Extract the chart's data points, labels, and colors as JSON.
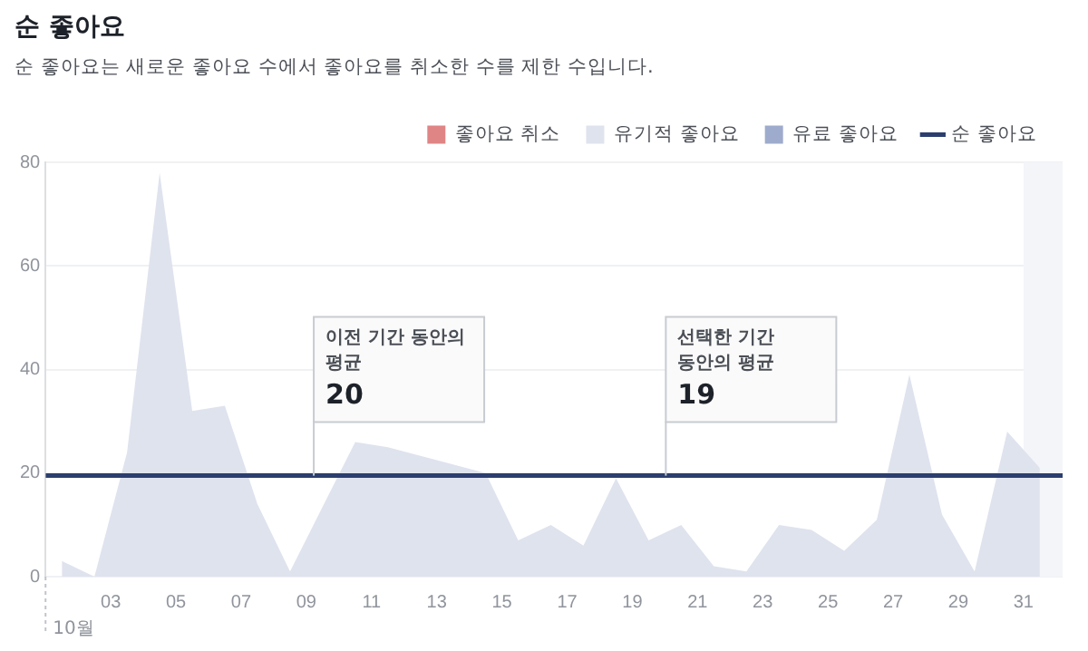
{
  "chart_data": {
    "type": "area",
    "title": "순 좋아요",
    "subtitle": "순 좋아요는 새로운 좋아요 수에서 좋아요를 취소한 수를 제한 수입니다.",
    "x": [
      1.5,
      2.5,
      3.5,
      4.5,
      5.5,
      6.5,
      7.5,
      8.5,
      9.5,
      10.5,
      11.5,
      12.5,
      13.5,
      14.5,
      15.5,
      16.5,
      17.5,
      18.5,
      19.5,
      20.5,
      21.5,
      22.5,
      23.5,
      24.5,
      25.5,
      26.5,
      27.5,
      28.5,
      29.5,
      30.5,
      31.5
    ],
    "series": [
      {
        "name": "좋아요 취소",
        "color": "#e08585",
        "values": [
          null,
          null,
          null,
          null,
          null,
          null,
          null,
          null,
          null,
          null,
          null,
          null,
          null,
          null,
          null,
          null,
          null,
          null,
          null,
          null,
          null,
          null,
          null,
          null,
          null,
          null,
          null,
          null,
          null,
          null,
          null
        ]
      },
      {
        "name": "유기적 좋아요",
        "color": "#dfe3ee",
        "values": [
          3,
          0,
          24,
          78,
          32,
          33,
          14,
          1,
          null,
          26,
          25,
          null,
          null,
          20,
          7,
          10,
          6,
          19,
          7,
          10,
          2,
          1,
          10,
          9,
          5,
          11,
          39,
          12,
          1,
          28,
          21
        ]
      },
      {
        "name": "유료 좋아요",
        "color": "#9eabcc",
        "values": [
          null,
          null,
          null,
          null,
          null,
          null,
          null,
          null,
          null,
          null,
          null,
          null,
          null,
          null,
          null,
          null,
          null,
          null,
          null,
          null,
          null,
          null,
          null,
          null,
          null,
          null,
          null,
          null,
          null,
          null,
          null
        ]
      },
      {
        "name": "순 좋아요",
        "type": "line",
        "color": "#2c3e6e",
        "x": [
          1,
          32.2
        ],
        "values": [
          19.5,
          19.5
        ]
      }
    ],
    "xlim": [
      1,
      32.2
    ],
    "xticks": [
      {
        "value": 3,
        "label": "03"
      },
      {
        "value": 5,
        "label": "05"
      },
      {
        "value": 7,
        "label": "07"
      },
      {
        "value": 9,
        "label": "09"
      },
      11,
      13,
      15,
      17,
      19,
      21,
      23,
      25,
      27,
      29,
      31
    ],
    "ylim": [
      0,
      80
    ],
    "yticks": [
      0,
      20,
      40,
      60,
      80
    ],
    "grid": "y",
    "legend": "top right",
    "bands": [
      {
        "axis": "x",
        "from": 31,
        "to": 32.2,
        "color": "#f4f5f9"
      }
    ],
    "annotations": [
      {
        "text": "이전 기간 동안의 평균 20",
        "x": 9.2,
        "y": 19.5
      },
      {
        "text": "선택한 기간 동안의 평균 19",
        "x": 20,
        "y": 19.5
      },
      "10월"
    ]
  }
}
